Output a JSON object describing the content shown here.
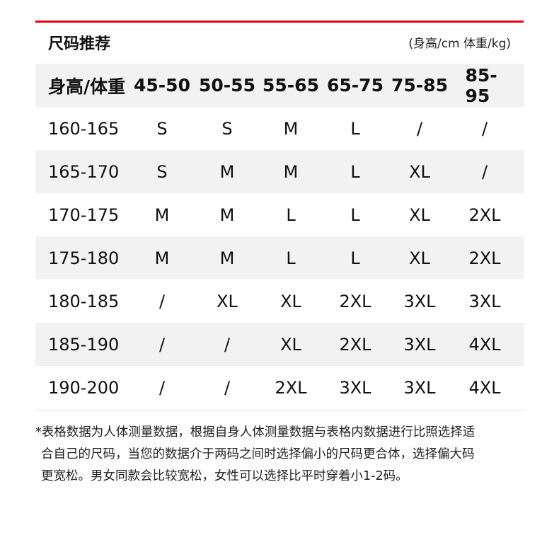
{
  "title": "尺码推荐",
  "unit": "(身高/cm 体重/kg)",
  "accent_color": "#e60012",
  "table": {
    "header": [
      "身高/体重",
      "45-50",
      "50-55",
      "55-65",
      "65-75",
      "75-85",
      "85-95"
    ],
    "rows": [
      [
        "160-165",
        "S",
        "S",
        "M",
        "L",
        "/",
        "/"
      ],
      [
        "165-170",
        "S",
        "M",
        "M",
        "L",
        "XL",
        "/"
      ],
      [
        "170-175",
        "M",
        "M",
        "L",
        "L",
        "XL",
        "2XL"
      ],
      [
        "175-180",
        "M",
        "M",
        "L",
        "L",
        "XL",
        "2XL"
      ],
      [
        "180-185",
        "/",
        "XL",
        "XL",
        "2XL",
        "3XL",
        "3XL"
      ],
      [
        "185-190",
        "/",
        "/",
        "XL",
        "2XL",
        "3XL",
        "4XL"
      ],
      [
        "190-200",
        "/",
        "/",
        "2XL",
        "3XL",
        "3XL",
        "4XL"
      ]
    ]
  },
  "note": [
    "*表格数据为人体测量数据，根据自身人体测量数据与表格内数据进行比照选择适",
    "合自己的尺码，当您的数据介于两码之间时选择偏小的尺码更合体，选择偏大码",
    "更宽松。男女同款会比较宽松，女性可以选择比平时穿着小1-2码。"
  ]
}
